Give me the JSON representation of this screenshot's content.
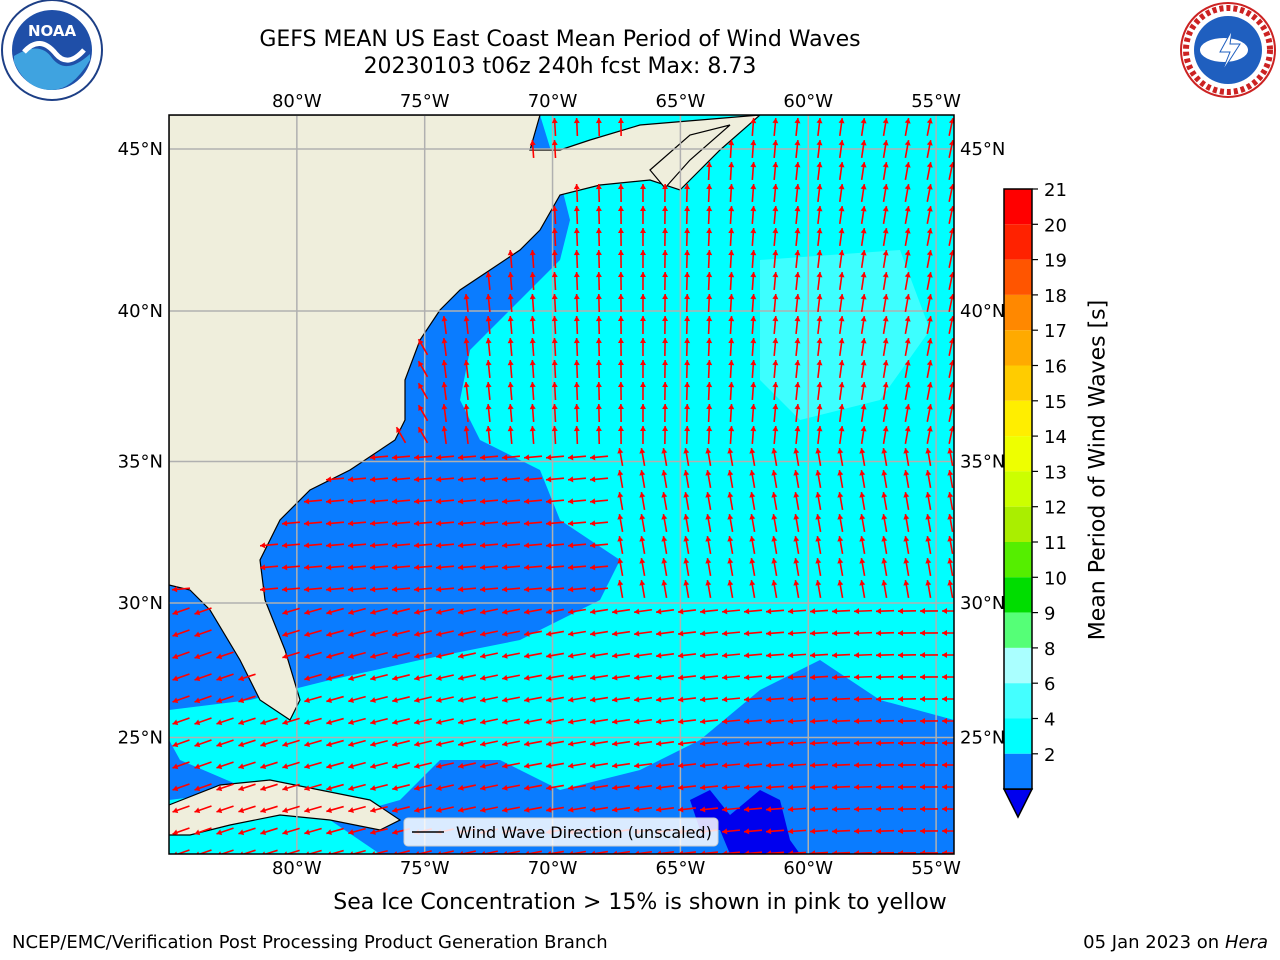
{
  "title": {
    "line1": "GEFS MEAN US East Coast Mean Period of Wind Waves",
    "line2": "20230103 t06z 240h fcst   Max: 8.73"
  },
  "map": {
    "lon_ticks": [
      "80°W",
      "75°W",
      "70°W",
      "65°W",
      "60°W",
      "55°W"
    ],
    "lon_values": [
      -80,
      -75,
      -70,
      -65,
      -60,
      -55
    ],
    "lat_ticks": [
      "45°N",
      "40°N",
      "35°N",
      "30°N",
      "25°N"
    ],
    "lat_values": [
      45,
      40,
      35,
      30,
      25
    ],
    "lon_range": [
      -85,
      -54.3
    ],
    "lat_range": [
      20.5,
      46
    ],
    "legend_label": "Wind Wave Direction (unscaled)",
    "colors": {
      "land": "#efeedc",
      "band_2_4": "#0a7cff",
      "band_4_6": "#00ffff",
      "band_6_8": "#44ffff",
      "band_0_2": "#0000ee",
      "arrow": "#ff0000",
      "grid": "#b0b0b0"
    }
  },
  "colorbar": {
    "label": "Mean Period of Wind Waves [s]",
    "ticks": [
      "21",
      "20",
      "19",
      "18",
      "17",
      "16",
      "15",
      "14",
      "13",
      "12",
      "11",
      "10",
      "9",
      "8",
      "6",
      "4",
      "2"
    ],
    "colors": [
      "#ff0000",
      "#ff2200",
      "#ff5500",
      "#ff8800",
      "#ffaa00",
      "#ffcc00",
      "#ffee00",
      "#eeff00",
      "#ccff00",
      "#aaee00",
      "#55ee00",
      "#00dd00",
      "#55ff77",
      "#aaffff",
      "#44ffff",
      "#00ffff",
      "#0a7cff"
    ],
    "extend_color": "#0000ee"
  },
  "caption": "Sea Ice Concentration > 15% is shown in pink to yellow",
  "footer": {
    "left": "NCEP/EMC/Verification Post Processing Product Generation Branch",
    "right_date": "05 Jan 2023 on ",
    "right_machine": "Hera"
  },
  "logos": {
    "left": "noaa-logo",
    "right": "nws-logo"
  }
}
